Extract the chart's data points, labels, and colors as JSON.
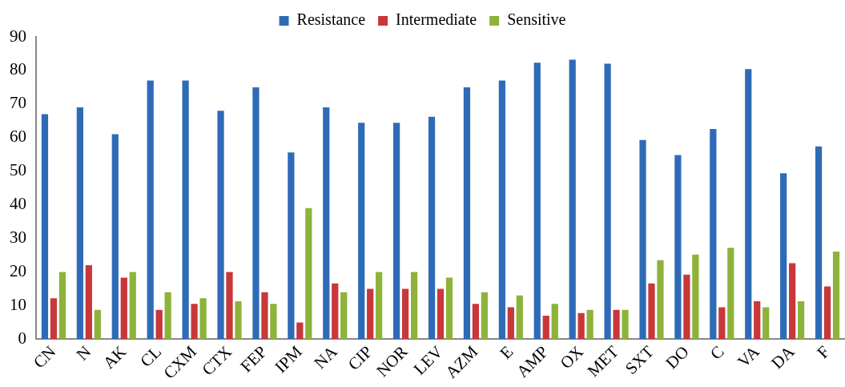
{
  "chart_data": {
    "type": "bar",
    "categories": [
      "CN",
      "N",
      "AK",
      "CL",
      "CXM",
      "CTX",
      "FEP",
      "IPM",
      "NA",
      "CIP",
      "NOR",
      "LEV",
      "AZM",
      "E",
      "AMP",
      "OX",
      "MET",
      "SXT",
      "DO",
      "C",
      "VA",
      "DA",
      "F"
    ],
    "series": [
      {
        "name": "Resistance",
        "color": "#2e6bb7",
        "values": [
          67,
          69,
          61,
          77,
          77,
          68,
          75,
          55.6,
          69,
          64.4,
          64.4,
          66.2,
          75,
          77,
          82.3,
          83.2,
          82,
          59.3,
          54.8,
          62.6,
          80.4,
          49.4,
          57.4
        ]
      },
      {
        "name": "Intermediate",
        "color": "#c8373a",
        "values": [
          12.2,
          22,
          18.3,
          8.7,
          10.5,
          20,
          14,
          5,
          16.6,
          15,
          15,
          15,
          10.5,
          9.5,
          7,
          7.8,
          8.7,
          16.6,
          19.2,
          9.5,
          11.3,
          22.6,
          15.7
        ]
      },
      {
        "name": "Sensitive",
        "color": "#8db33a",
        "values": [
          20,
          8.7,
          20,
          14,
          12.2,
          11.3,
          10.5,
          39,
          14,
          20,
          20,
          18.3,
          14,
          13,
          10.5,
          8.7,
          8.7,
          23.5,
          25.2,
          27.2,
          9.5,
          11.3,
          26.1
        ]
      }
    ],
    "ylim": [
      0,
      90
    ],
    "yticks": [
      0,
      10,
      20,
      30,
      40,
      50,
      60,
      70,
      80,
      90
    ],
    "grid": false,
    "legend": "top"
  }
}
